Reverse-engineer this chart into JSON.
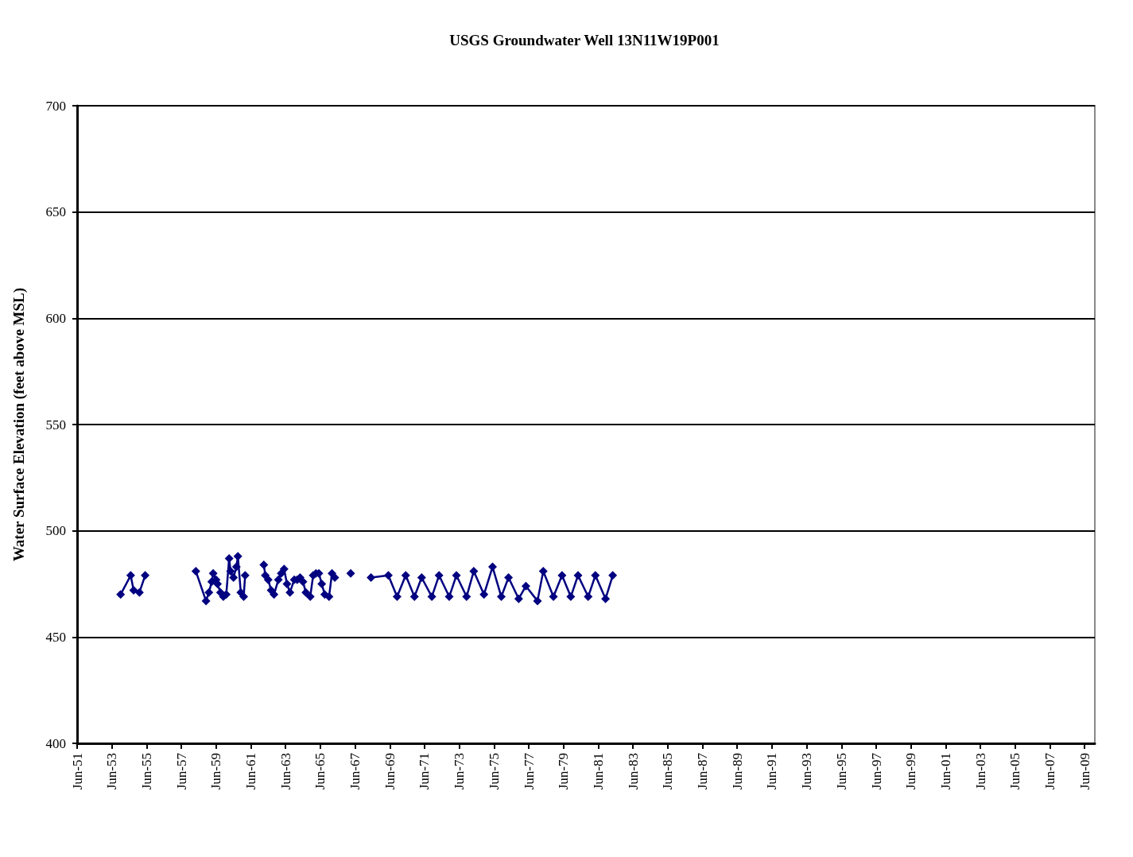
{
  "chart_data": {
    "type": "line",
    "title": "USGS Groundwater Well 13N11W19P001",
    "ylabel": "Water Surface Elevation (feet above MSL)",
    "x": [
      "1953-12",
      "1954-07",
      "1954-09",
      "1955-01",
      "1955-05",
      "1956-09",
      "1958-04",
      "1958-11",
      "1959-01",
      "1959-03",
      "1959-04",
      "1959-06",
      "1959-07",
      "1959-09",
      "1959-11",
      "1960-01",
      "1960-03",
      "1960-04",
      "1960-06",
      "1960-08",
      "1960-09",
      "1960-11",
      "1961-01",
      "1961-02",
      "1961-09",
      "1962-03",
      "1962-04",
      "1962-06",
      "1962-08",
      "1962-10",
      "1963-01",
      "1963-03",
      "1963-05",
      "1963-07",
      "1963-09",
      "1963-12",
      "1964-02",
      "1964-04",
      "1964-06",
      "1964-08",
      "1964-11",
      "1965-01",
      "1965-03",
      "1965-05",
      "1965-07",
      "1965-09",
      "1965-12",
      "1966-02",
      "1966-04",
      "1966-10",
      "1967-03",
      "1967-10",
      "1968-05",
      "1969-05",
      "1969-11",
      "1970-05",
      "1970-11",
      "1971-04",
      "1971-11",
      "1972-04",
      "1972-11",
      "1973-04",
      "1973-11",
      "1974-04",
      "1974-11",
      "1975-05",
      "1975-11",
      "1976-04",
      "1976-11",
      "1977-04",
      "1977-12",
      "1978-04",
      "1978-11",
      "1979-05",
      "1979-11",
      "1980-04",
      "1980-11",
      "1981-04",
      "1981-11",
      "1982-04"
    ],
    "series": [
      {
        "color": "#000080",
        "values": [
          470,
          479,
          472,
          471,
          479,
          null,
          481,
          467,
          471,
          476,
          480,
          477,
          475,
          471,
          469,
          470,
          487,
          481,
          478,
          483,
          488,
          471,
          469,
          479,
          null,
          484,
          479,
          477,
          472,
          470,
          477,
          480,
          482,
          475,
          471,
          477,
          477,
          478,
          476,
          471,
          469,
          479,
          480,
          480,
          475,
          470,
          469,
          480,
          478,
          null,
          480,
          null,
          478,
          479,
          469,
          479,
          469,
          478,
          469,
          479,
          469,
          479,
          469,
          481,
          470,
          483,
          469,
          478,
          468,
          474,
          467,
          481,
          469,
          479,
          469,
          479,
          469,
          479,
          468,
          479
        ]
      }
    ],
    "xlim": [
      "1951-06",
      "2010-01"
    ],
    "xticks": [
      {
        "value": "1951-06",
        "label": "Jun-51"
      },
      {
        "value": "1953-06",
        "label": "Jun-53"
      },
      {
        "value": "1955-06",
        "label": "Jun-55"
      },
      {
        "value": "1957-06",
        "label": "Jun-57"
      },
      {
        "value": "1959-06",
        "label": "Jun-59"
      },
      {
        "value": "1961-06",
        "label": "Jun-61"
      },
      {
        "value": "1963-06",
        "label": "Jun-63"
      },
      {
        "value": "1965-06",
        "label": "Jun-65"
      },
      {
        "value": "1967-06",
        "label": "Jun-67"
      },
      {
        "value": "1969-06",
        "label": "Jun-69"
      },
      {
        "value": "1971-06",
        "label": "Jun-71"
      },
      {
        "value": "1973-06",
        "label": "Jun-73"
      },
      {
        "value": "1975-06",
        "label": "Jun-75"
      },
      {
        "value": "1977-06",
        "label": "Jun-77"
      },
      {
        "value": "1979-06",
        "label": "Jun-79"
      },
      {
        "value": "1981-06",
        "label": "Jun-81"
      },
      {
        "value": "1983-06",
        "label": "Jun-83"
      },
      {
        "value": "1985-06",
        "label": "Jun-85"
      },
      {
        "value": "1987-06",
        "label": "Jun-87"
      },
      {
        "value": "1989-06",
        "label": "Jun-89"
      },
      {
        "value": "1991-06",
        "label": "Jun-91"
      },
      {
        "value": "1993-06",
        "label": "Jun-93"
      },
      {
        "value": "1995-06",
        "label": "Jun-95"
      },
      {
        "value": "1997-06",
        "label": "Jun-97"
      },
      {
        "value": "1999-06",
        "label": "Jun-99"
      },
      {
        "value": "2001-06",
        "label": "Jun-01"
      },
      {
        "value": "2003-06",
        "label": "Jun-03"
      },
      {
        "value": "2005-06",
        "label": "Jun-05"
      },
      {
        "value": "2007-06",
        "label": "Jun-07"
      },
      {
        "value": "2009-06",
        "label": "Jun-09"
      }
    ],
    "ylim": [
      400,
      700
    ],
    "yticks": [
      400,
      450,
      500,
      550,
      600,
      650,
      700
    ],
    "grid": "y",
    "marker": "diamond",
    "line_style": "solid"
  }
}
